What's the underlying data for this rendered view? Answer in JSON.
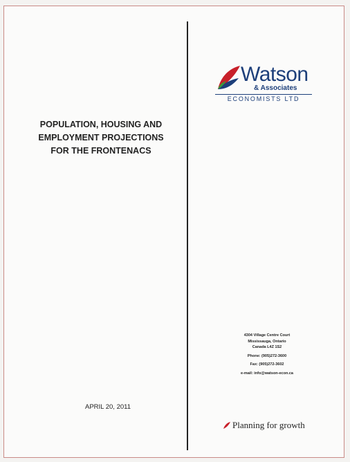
{
  "title": [
    "POPULATION, HOUSING AND",
    "EMPLOYMENT PROJECTIONS",
    "FOR THE FRONTENACS"
  ],
  "date": "APRIL 20, 2011",
  "logo": {
    "name": "Watson",
    "sub": "& Associates",
    "line": "ECONOMISTS LTD"
  },
  "address": [
    "4304 Village Centre Court",
    "Mississauga, Ontario",
    "Canada L4Z 1S2",
    "Phone: (905)272-3600",
    "Fax: (905)272-3602",
    "e-mail: info@watson-econ.ca"
  ],
  "tagline": "Planning for growth"
}
